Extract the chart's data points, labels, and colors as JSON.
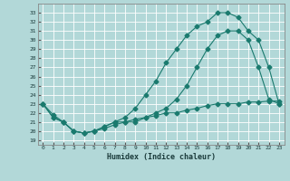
{
  "xlabel": "Humidex (Indice chaleur)",
  "bg_color": "#b2d8d8",
  "line_color": "#1a7a6e",
  "grid_color": "#ffffff",
  "xlim": [
    -0.5,
    23.5
  ],
  "ylim": [
    18.5,
    34.0
  ],
  "yticks": [
    19,
    20,
    21,
    22,
    23,
    24,
    25,
    26,
    27,
    28,
    29,
    30,
    31,
    32,
    33
  ],
  "xticks": [
    0,
    1,
    2,
    3,
    4,
    5,
    6,
    7,
    8,
    9,
    10,
    11,
    12,
    13,
    14,
    15,
    16,
    17,
    18,
    19,
    20,
    21,
    22,
    23
  ],
  "line1_x": [
    0,
    1,
    2,
    3,
    4,
    5,
    6,
    7,
    8,
    9,
    10,
    11,
    12,
    13,
    14,
    15,
    16,
    17,
    18,
    19,
    20,
    21,
    22,
    23
  ],
  "line1_y": [
    23,
    21.5,
    21,
    20,
    19.8,
    20,
    20.5,
    21,
    21,
    21,
    21.5,
    22,
    22.5,
    23.5,
    25,
    27,
    29,
    30.5,
    31,
    31,
    30,
    27,
    23.5,
    23
  ],
  "line2_x": [
    0,
    1,
    2,
    3,
    4,
    5,
    6,
    7,
    8,
    9,
    10,
    11,
    12,
    13,
    14,
    15,
    16,
    17,
    18,
    19,
    20,
    21,
    22,
    23
  ],
  "line2_y": [
    23,
    21.5,
    21,
    20,
    19.8,
    20,
    20.5,
    21,
    21.5,
    22.5,
    24,
    25.5,
    27.5,
    29,
    30.5,
    31.5,
    32,
    33,
    33,
    32.5,
    31,
    30,
    27,
    23
  ],
  "line3_x": [
    0,
    1,
    2,
    3,
    4,
    5,
    6,
    7,
    8,
    9,
    10,
    11,
    12,
    13,
    14,
    15,
    16,
    17,
    18,
    19,
    20,
    21,
    22,
    23
  ],
  "line3_y": [
    23,
    21.8,
    21.0,
    20.0,
    19.8,
    20.0,
    20.3,
    20.7,
    21.0,
    21.3,
    21.5,
    21.7,
    22.0,
    22.0,
    22.3,
    22.5,
    22.8,
    23.0,
    23.0,
    23.0,
    23.2,
    23.2,
    23.3,
    23.3
  ]
}
